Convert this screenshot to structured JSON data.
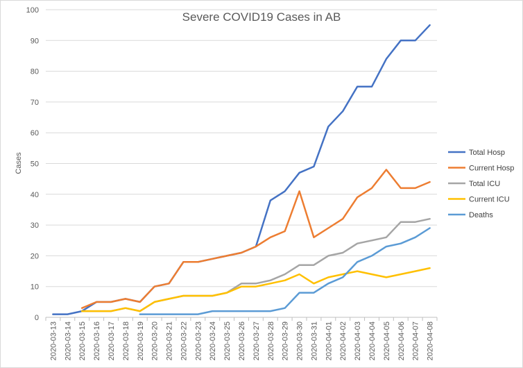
{
  "chart_data": {
    "type": "line",
    "title": "Severe COVID19 Cases in AB",
    "xlabel": "",
    "ylabel": "Cases",
    "ylim": [
      0,
      100
    ],
    "yticks": [
      0,
      10,
      20,
      30,
      40,
      50,
      60,
      70,
      80,
      90,
      100
    ],
    "grid": "horizontal",
    "legend_position": "right",
    "categories": [
      "2020-03-13",
      "2020-03-14",
      "2020-03-15",
      "2020-03-16",
      "2020-03-17",
      "2020-03-18",
      "2020-03-19",
      "2020-03-20",
      "2020-03-21",
      "2020-03-22",
      "2020-03-23",
      "2020-03-24",
      "2020-03-25",
      "2020-03-26",
      "2020-03-27",
      "2020-03-28",
      "2020-03-29",
      "2020-03-30",
      "2020-03-31",
      "2020-04-01",
      "2020-04-02",
      "2020-04-03",
      "2020-04-04",
      "2020-04-05",
      "2020-04-06",
      "2020-04-07",
      "2020-04-08"
    ],
    "series": [
      {
        "name": "Total Hosp",
        "color": "#4472C4",
        "values": [
          1,
          1,
          2,
          5,
          5,
          6,
          5,
          10,
          11,
          18,
          18,
          19,
          20,
          21,
          23,
          38,
          41,
          47,
          49,
          62,
          67,
          75,
          75,
          84,
          90,
          90,
          95
        ]
      },
      {
        "name": "Current Hosp",
        "color": "#ED7D31",
        "values": [
          null,
          null,
          3,
          5,
          5,
          6,
          5,
          10,
          11,
          18,
          18,
          19,
          20,
          21,
          23,
          26,
          28,
          41,
          26,
          29,
          32,
          39,
          42,
          48,
          42,
          42,
          44
        ]
      },
      {
        "name": "Total ICU",
        "color": "#A5A5A5",
        "values": [
          null,
          null,
          2,
          2,
          2,
          3,
          2,
          5,
          6,
          7,
          7,
          7,
          8,
          11,
          11,
          12,
          14,
          17,
          17,
          20,
          21,
          24,
          25,
          26,
          31,
          31,
          32
        ]
      },
      {
        "name": "Current ICU",
        "color": "#FFC000",
        "values": [
          null,
          null,
          2,
          2,
          2,
          3,
          2,
          5,
          6,
          7,
          7,
          7,
          8,
          10,
          10,
          11,
          12,
          14,
          11,
          13,
          14,
          15,
          14,
          13,
          14,
          15,
          16
        ]
      },
      {
        "name": "Deaths",
        "color": "#5B9BD5",
        "values": [
          null,
          null,
          null,
          null,
          null,
          null,
          1,
          1,
          1,
          1,
          1,
          2,
          2,
          2,
          2,
          2,
          3,
          8,
          8,
          11,
          13,
          18,
          20,
          23,
          24,
          26,
          29
        ]
      }
    ]
  }
}
